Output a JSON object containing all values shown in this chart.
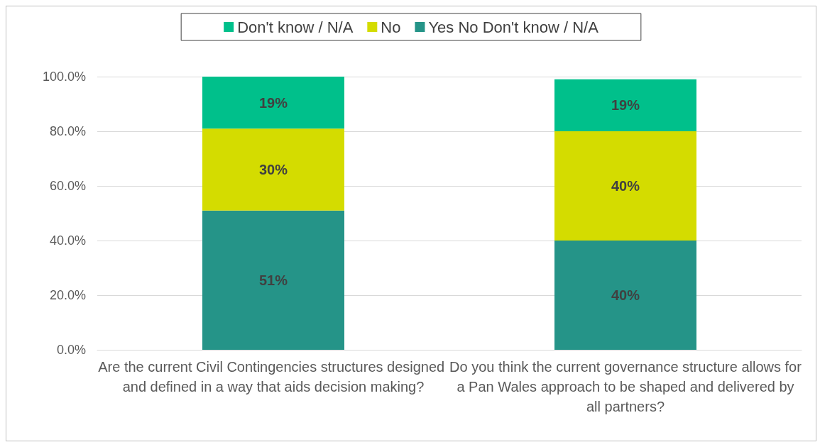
{
  "chart_data": {
    "type": "bar",
    "stacked": true,
    "categories": [
      "Are the current Civil Contingencies structures designed and defined in a way that aids decision making?",
      "Do you think the current governance structure allows for a Pan Wales approach to be shaped and delivered by all partners?"
    ],
    "series": [
      {
        "name": "Yes No Don't know / N/A",
        "color": "#259488",
        "values": [
          51,
          40
        ],
        "value_labels": [
          "51%",
          "40%"
        ]
      },
      {
        "name": "No",
        "color": "#d4dc00",
        "values": [
          30,
          40
        ],
        "value_labels": [
          "30%",
          "40%"
        ]
      },
      {
        "name": "Don't know / N/A",
        "color": "#00c08b",
        "values": [
          19,
          19
        ],
        "value_labels": [
          "19%",
          "19%"
        ]
      }
    ],
    "ylim": [
      0,
      100
    ],
    "yticks": [
      {
        "value": 0,
        "label": "0.0%"
      },
      {
        "value": 20,
        "label": "20.0%"
      },
      {
        "value": 40,
        "label": "40.0%"
      },
      {
        "value": 60,
        "label": "60.0%"
      },
      {
        "value": 80,
        "label": "80.0%"
      },
      {
        "value": 100,
        "label": "100.0%"
      }
    ],
    "grid": "y",
    "legend": "top"
  }
}
